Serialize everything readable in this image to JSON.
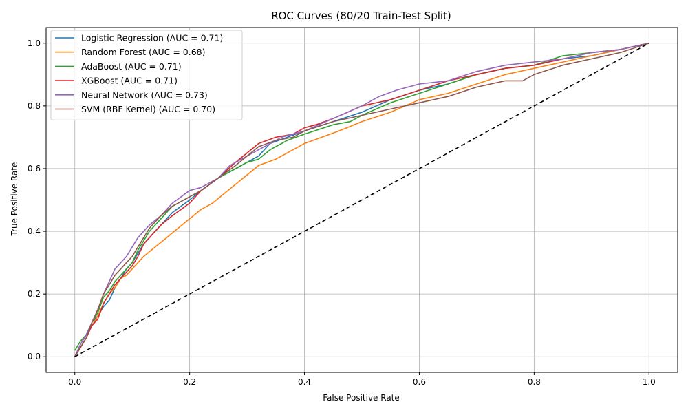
{
  "chart_data": {
    "type": "line",
    "title": "ROC Curves (80/20 Train-Test Split)",
    "xlabel": "False Positive Rate",
    "ylabel": "True Positive Rate",
    "xlim": [
      -0.05,
      1.05
    ],
    "ylim": [
      -0.05,
      1.05
    ],
    "xticks": [
      0.0,
      0.2,
      0.4,
      0.6,
      0.8,
      1.0
    ],
    "yticks": [
      0.0,
      0.2,
      0.4,
      0.6,
      0.8,
      1.0
    ],
    "xtick_labels": [
      "0.0",
      "0.2",
      "0.4",
      "0.6",
      "0.8",
      "1.0"
    ],
    "ytick_labels": [
      "0.0",
      "0.2",
      "0.4",
      "0.6",
      "0.8",
      "1.0"
    ],
    "grid": true,
    "legend_position": "top-left",
    "series": [
      {
        "name": "Logistic Regression (AUC = 0.71)",
        "color": "#1f77b4",
        "x": [
          0,
          0.01,
          0.02,
          0.03,
          0.04,
          0.05,
          0.06,
          0.07,
          0.08,
          0.09,
          0.1,
          0.11,
          0.12,
          0.13,
          0.15,
          0.17,
          0.2,
          0.22,
          0.25,
          0.28,
          0.3,
          0.32,
          0.34,
          0.37,
          0.4,
          0.45,
          0.5,
          0.55,
          0.6,
          0.65,
          0.7,
          0.75,
          0.8,
          0.85,
          0.9,
          0.95,
          1.0
        ],
        "y": [
          0,
          0.04,
          0.07,
          0.11,
          0.13,
          0.16,
          0.18,
          0.22,
          0.25,
          0.28,
          0.3,
          0.33,
          0.36,
          0.38,
          0.42,
          0.46,
          0.5,
          0.53,
          0.57,
          0.6,
          0.62,
          0.64,
          0.68,
          0.7,
          0.72,
          0.75,
          0.78,
          0.82,
          0.85,
          0.87,
          0.9,
          0.92,
          0.93,
          0.95,
          0.96,
          0.98,
          1.0
        ]
      },
      {
        "name": "Random Forest (AUC = 0.68)",
        "color": "#ff7f0e",
        "x": [
          0,
          0.01,
          0.02,
          0.03,
          0.04,
          0.05,
          0.06,
          0.07,
          0.08,
          0.09,
          0.1,
          0.11,
          0.12,
          0.14,
          0.16,
          0.18,
          0.2,
          0.22,
          0.24,
          0.26,
          0.28,
          0.3,
          0.32,
          0.35,
          0.38,
          0.4,
          0.43,
          0.46,
          0.5,
          0.55,
          0.6,
          0.65,
          0.7,
          0.75,
          0.8,
          0.85,
          0.9,
          0.95,
          1.0
        ],
        "y": [
          0,
          0.04,
          0.07,
          0.1,
          0.13,
          0.17,
          0.2,
          0.22,
          0.25,
          0.26,
          0.28,
          0.3,
          0.32,
          0.35,
          0.38,
          0.41,
          0.44,
          0.47,
          0.49,
          0.52,
          0.55,
          0.58,
          0.61,
          0.63,
          0.66,
          0.68,
          0.7,
          0.72,
          0.75,
          0.78,
          0.82,
          0.84,
          0.87,
          0.9,
          0.92,
          0.94,
          0.96,
          0.98,
          1.0
        ]
      },
      {
        "name": "AdaBoost (AUC = 0.71)",
        "color": "#2ca02c",
        "x": [
          0,
          0.01,
          0.02,
          0.03,
          0.04,
          0.05,
          0.06,
          0.07,
          0.08,
          0.09,
          0.1,
          0.11,
          0.12,
          0.13,
          0.15,
          0.17,
          0.2,
          0.22,
          0.25,
          0.28,
          0.3,
          0.32,
          0.34,
          0.37,
          0.4,
          0.45,
          0.48,
          0.5,
          0.55,
          0.6,
          0.65,
          0.7,
          0.75,
          0.8,
          0.85,
          0.9,
          0.95,
          1.0
        ],
        "y": [
          0.02,
          0.05,
          0.07,
          0.11,
          0.14,
          0.19,
          0.21,
          0.24,
          0.26,
          0.28,
          0.3,
          0.34,
          0.37,
          0.4,
          0.44,
          0.48,
          0.51,
          0.53,
          0.57,
          0.6,
          0.62,
          0.63,
          0.66,
          0.69,
          0.71,
          0.74,
          0.75,
          0.77,
          0.81,
          0.84,
          0.87,
          0.9,
          0.92,
          0.93,
          0.96,
          0.97,
          0.98,
          1.0
        ]
      },
      {
        "name": "XGBoost (AUC = 0.71)",
        "color": "#d62728",
        "x": [
          0,
          0.01,
          0.02,
          0.03,
          0.04,
          0.05,
          0.06,
          0.07,
          0.08,
          0.09,
          0.1,
          0.11,
          0.12,
          0.13,
          0.15,
          0.17,
          0.2,
          0.22,
          0.25,
          0.28,
          0.3,
          0.32,
          0.35,
          0.38,
          0.4,
          0.42,
          0.45,
          0.5,
          0.55,
          0.6,
          0.65,
          0.7,
          0.75,
          0.8,
          0.85,
          0.9,
          0.95,
          1.0
        ],
        "y": [
          0,
          0.03,
          0.06,
          0.1,
          0.12,
          0.17,
          0.2,
          0.23,
          0.25,
          0.27,
          0.29,
          0.32,
          0.36,
          0.38,
          0.42,
          0.45,
          0.49,
          0.53,
          0.57,
          0.62,
          0.65,
          0.68,
          0.7,
          0.71,
          0.73,
          0.74,
          0.76,
          0.8,
          0.82,
          0.85,
          0.88,
          0.9,
          0.92,
          0.93,
          0.95,
          0.97,
          0.98,
          1.0
        ]
      },
      {
        "name": "Neural Network (AUC = 0.73)",
        "color": "#9467bd",
        "x": [
          0,
          0.01,
          0.02,
          0.03,
          0.04,
          0.05,
          0.06,
          0.07,
          0.08,
          0.09,
          0.1,
          0.11,
          0.12,
          0.13,
          0.15,
          0.17,
          0.2,
          0.22,
          0.25,
          0.27,
          0.3,
          0.33,
          0.36,
          0.4,
          0.45,
          0.5,
          0.53,
          0.56,
          0.6,
          0.65,
          0.7,
          0.75,
          0.8,
          0.85,
          0.9,
          0.95,
          1.0
        ],
        "y": [
          0,
          0.04,
          0.07,
          0.11,
          0.15,
          0.2,
          0.24,
          0.28,
          0.3,
          0.32,
          0.35,
          0.38,
          0.4,
          0.42,
          0.45,
          0.49,
          0.53,
          0.54,
          0.57,
          0.61,
          0.64,
          0.67,
          0.7,
          0.72,
          0.76,
          0.8,
          0.83,
          0.85,
          0.87,
          0.88,
          0.91,
          0.93,
          0.94,
          0.95,
          0.97,
          0.98,
          1.0
        ]
      },
      {
        "name": "SVM (RBF Kernel) (AUC = 0.70)",
        "color": "#8c564b",
        "x": [
          0,
          0.01,
          0.02,
          0.03,
          0.04,
          0.05,
          0.06,
          0.07,
          0.08,
          0.09,
          0.1,
          0.11,
          0.12,
          0.13,
          0.15,
          0.17,
          0.2,
          0.22,
          0.25,
          0.28,
          0.3,
          0.32,
          0.35,
          0.38,
          0.4,
          0.45,
          0.5,
          0.55,
          0.6,
          0.65,
          0.7,
          0.75,
          0.78,
          0.8,
          0.85,
          0.9,
          0.95,
          1.0
        ],
        "y": [
          0,
          0.03,
          0.06,
          0.11,
          0.15,
          0.2,
          0.23,
          0.26,
          0.28,
          0.3,
          0.32,
          0.35,
          0.38,
          0.41,
          0.45,
          0.48,
          0.51,
          0.53,
          0.57,
          0.61,
          0.64,
          0.67,
          0.69,
          0.7,
          0.72,
          0.75,
          0.77,
          0.79,
          0.81,
          0.83,
          0.86,
          0.88,
          0.88,
          0.9,
          0.93,
          0.95,
          0.97,
          1.0
        ]
      },
      {
        "name": "",
        "color": "#000000",
        "dashed": true,
        "x": [
          0,
          1
        ],
        "y": [
          0,
          1
        ]
      }
    ]
  }
}
